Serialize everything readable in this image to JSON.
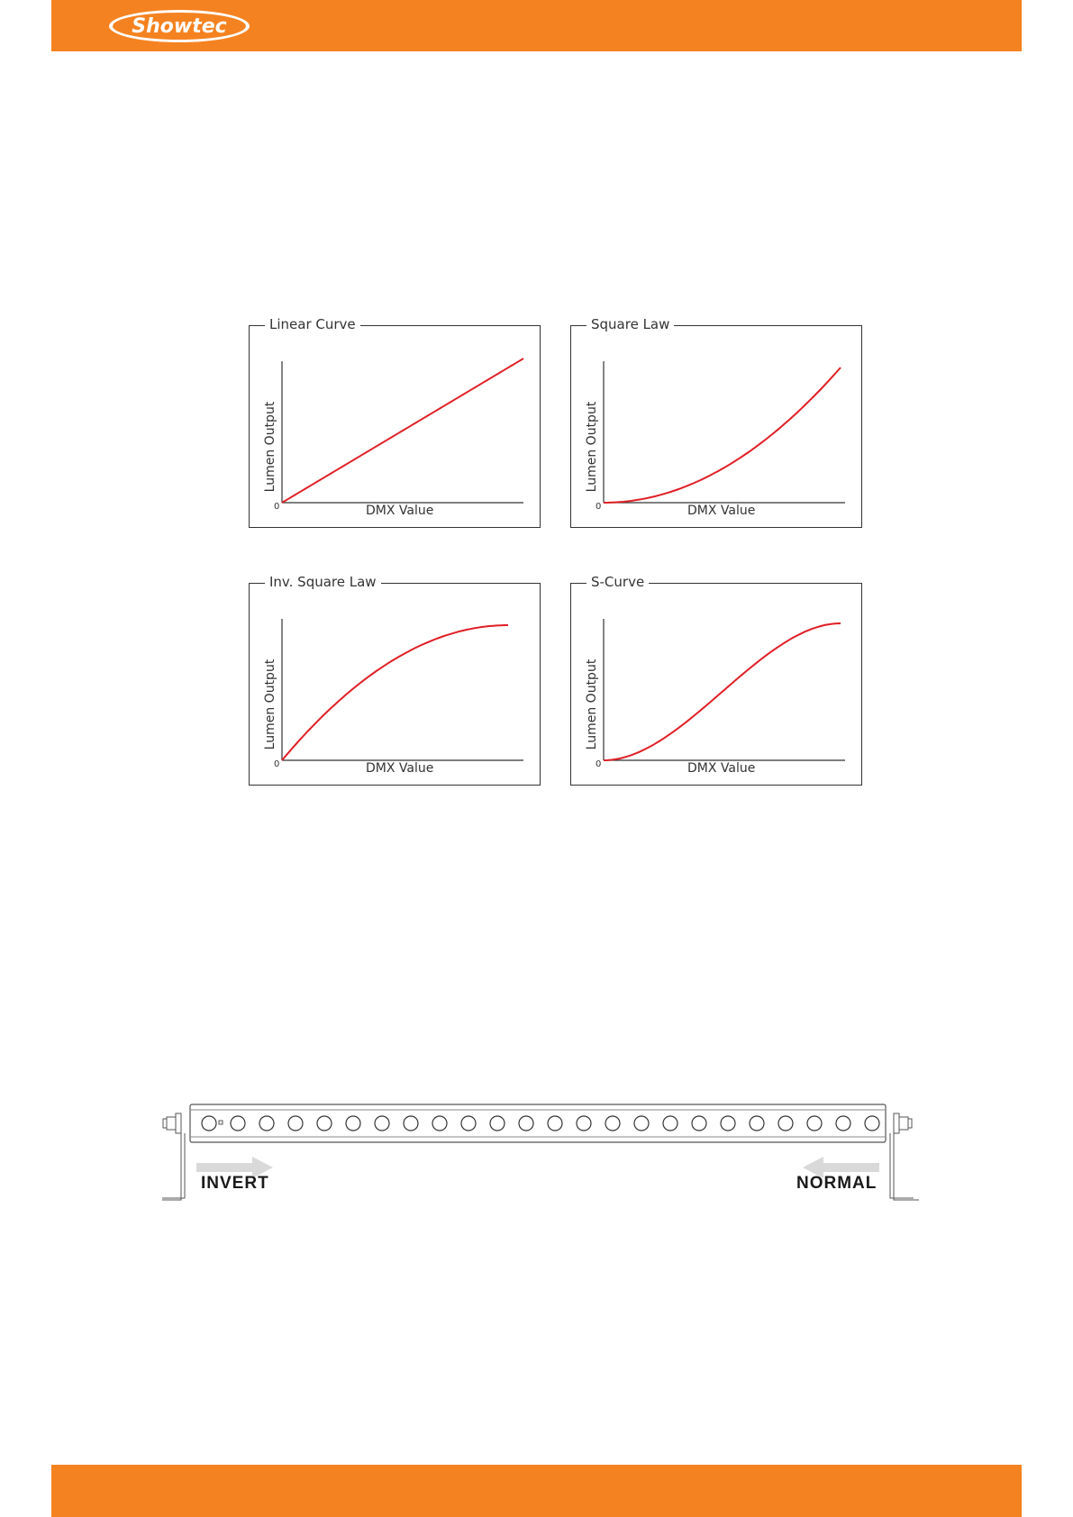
{
  "header": {
    "logo_text": "Showtec",
    "color": "#f58220"
  },
  "footer": {
    "color": "#f58220"
  },
  "charts": [
    {
      "title": "Linear Curve",
      "ylabel": "Lumen Output",
      "xlabel": "DMX Value",
      "origin": "0"
    },
    {
      "title": "Square Law",
      "ylabel": "Lumen Output",
      "xlabel": "DMX Value",
      "origin": "0"
    },
    {
      "title": "Inv. Square Law",
      "ylabel": "Lumen Output",
      "xlabel": "DMX Value",
      "origin": "0"
    },
    {
      "title": "S-Curve",
      "ylabel": "Lumen Output",
      "xlabel": "DMX Value",
      "origin": "0"
    }
  ],
  "chart_data": [
    {
      "type": "line",
      "title": "Linear Curve",
      "xlabel": "DMX Value",
      "ylabel": "Lumen Output",
      "curve": "linear",
      "color": "#e01f26"
    },
    {
      "type": "line",
      "title": "Square Law",
      "xlabel": "DMX Value",
      "ylabel": "Lumen Output",
      "curve": "square",
      "color": "#e01f26"
    },
    {
      "type": "line",
      "title": "Inv. Square Law",
      "xlabel": "DMX Value",
      "ylabel": "Lumen Output",
      "curve": "inverse-square",
      "color": "#e01f26"
    },
    {
      "type": "line",
      "title": "S-Curve",
      "xlabel": "DMX Value",
      "ylabel": "Lumen Output",
      "curve": "s-curve",
      "color": "#e01f26"
    }
  ],
  "ledbar": {
    "led_count": 24,
    "invert_label": "INVERT",
    "normal_label": "NORMAL",
    "arrow_color": "#d9d9d9"
  }
}
